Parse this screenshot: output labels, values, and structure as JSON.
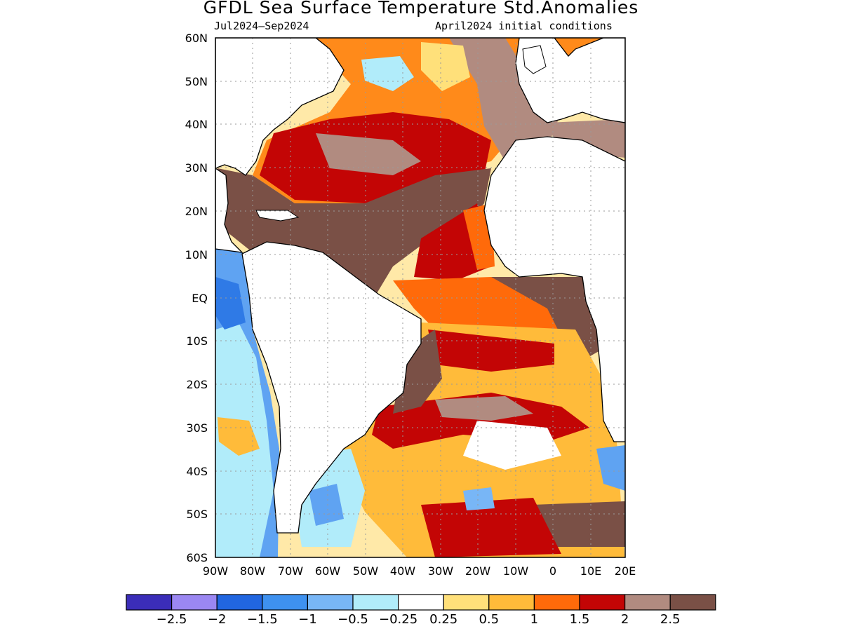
{
  "title": "GFDL Sea Surface Temperature Std.Anomalies",
  "subtitle_left": "Jul2024–Sep2024",
  "subtitle_right": "April2024 initial conditions",
  "map": {
    "region": "Atlantic Ocean",
    "lon_range": [
      -90,
      20
    ],
    "lat_range": [
      -60,
      60
    ],
    "lat_ticks": [
      "60N",
      "50N",
      "40N",
      "30N",
      "20N",
      "10N",
      "EQ",
      "10S",
      "20S",
      "30S",
      "40S",
      "50S",
      "60S"
    ],
    "lon_ticks": [
      "90W",
      "80W",
      "70W",
      "60W",
      "50W",
      "40W",
      "30W",
      "20W",
      "10W",
      "0",
      "10E",
      "20E"
    ],
    "grid": "dotted"
  },
  "colorbar": {
    "colors": [
      "#3b2db8",
      "#9b87f2",
      "#2166e0",
      "#3e91ef",
      "#78b6f6",
      "#b1ecfa",
      "#ffffff",
      "#ffe07a",
      "#ffbb3a",
      "#ff6a0a",
      "#c30505",
      "#b18b80",
      "#7a5046"
    ],
    "labels": [
      "−2.5",
      "−2",
      "−1.5",
      "−1",
      "−0.5",
      "−0.25",
      "0.25",
      "0.5",
      "1",
      "1.5",
      "2",
      "2.5"
    ]
  }
}
